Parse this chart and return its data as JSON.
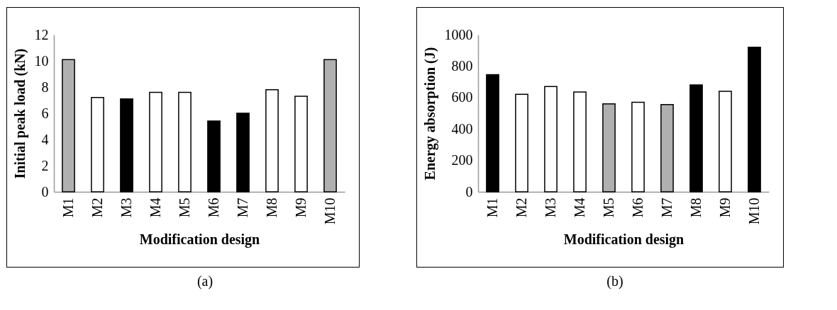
{
  "chart_data": [
    {
      "type": "bar",
      "ylabel": "Initial peak load (kN)",
      "xlabel": "Modification design",
      "categories": [
        "M1",
        "M2",
        "M3",
        "M4",
        "M5",
        "M6",
        "M7",
        "M8",
        "M9",
        "M10"
      ],
      "values": [
        10.1,
        7.2,
        7.1,
        7.6,
        7.6,
        5.4,
        6.0,
        7.8,
        7.3,
        10.1
      ],
      "colors": [
        "#b0b0b0",
        "#ffffff",
        "#000000",
        "#ffffff",
        "#ffffff",
        "#000000",
        "#000000",
        "#ffffff",
        "#ffffff",
        "#b0b0b0"
      ],
      "ylim": [
        0,
        12
      ],
      "yticks": [
        0,
        2,
        4,
        6,
        8,
        10,
        12
      ],
      "grid": false,
      "annotations": [
        "(a)"
      ]
    },
    {
      "type": "bar",
      "ylabel": "Energy absorption (J)",
      "xlabel": "Modification design",
      "categories": [
        "M1",
        "M2",
        "M3",
        "M4",
        "M5",
        "M6",
        "M7",
        "M8",
        "M9",
        "M10"
      ],
      "values": [
        745,
        620,
        670,
        635,
        560,
        570,
        555,
        680,
        640,
        920
      ],
      "colors": [
        "#000000",
        "#ffffff",
        "#ffffff",
        "#ffffff",
        "#b0b0b0",
        "#ffffff",
        "#b0b0b0",
        "#000000",
        "#ffffff",
        "#000000"
      ],
      "ylim": [
        0,
        1000
      ],
      "yticks": [
        0,
        200,
        400,
        600,
        800,
        1000
      ],
      "grid": false,
      "annotations": [
        "(b)"
      ]
    }
  ]
}
